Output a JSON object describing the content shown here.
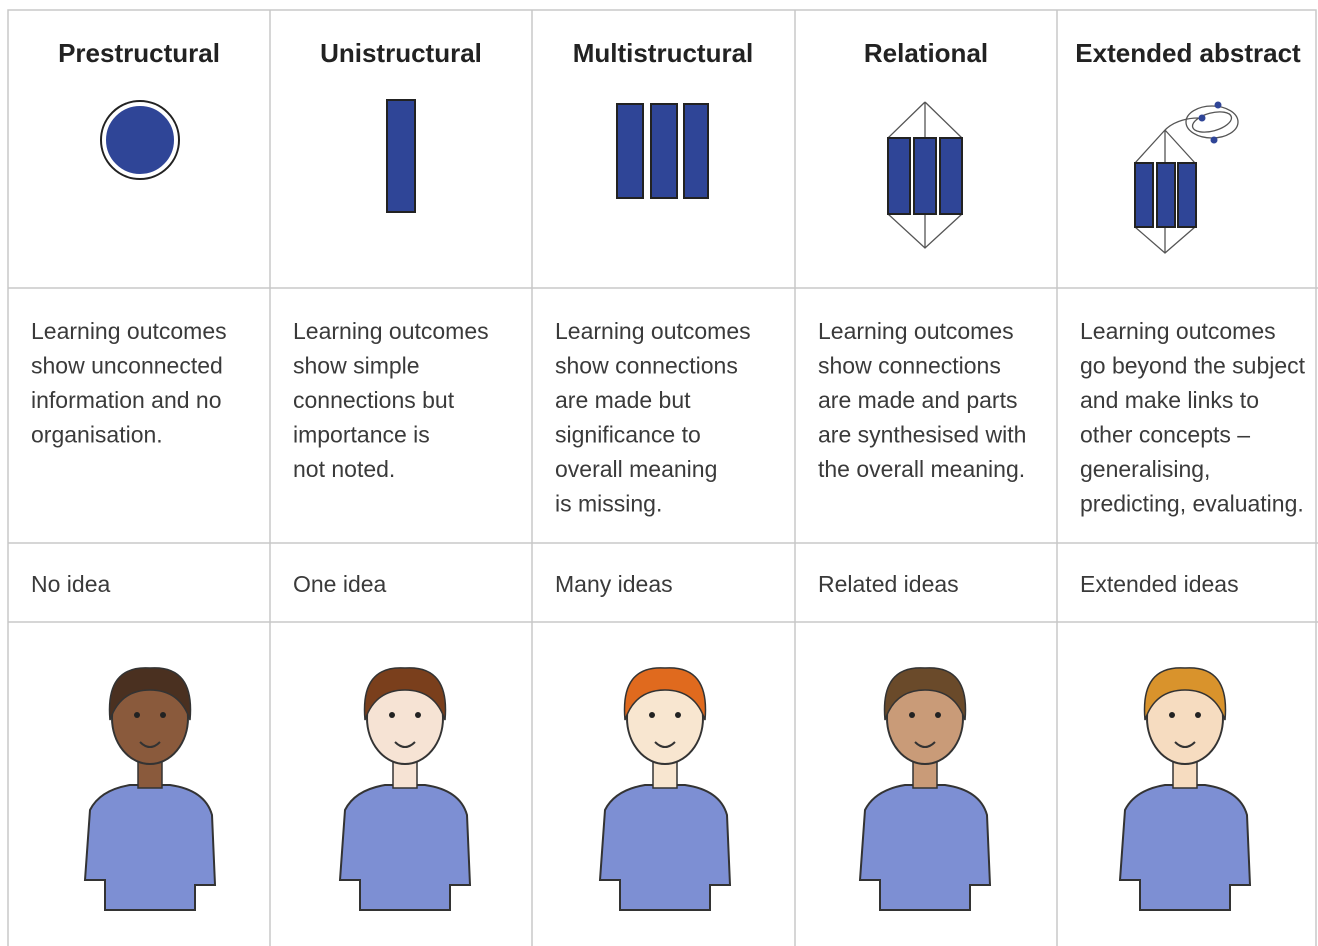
{
  "table": {
    "columns": [
      {
        "title": "Prestructural",
        "description_lines": [
          "Learning outcomes",
          "show unconnected",
          "information and no",
          "organisation."
        ],
        "idea": "No idea"
      },
      {
        "title": "Unistructural",
        "description_lines": [
          "Learning outcomes",
          "show simple",
          "connections but",
          "importance is",
          "not noted."
        ],
        "idea": "One idea"
      },
      {
        "title": "Multistructural",
        "description_lines": [
          "Learning outcomes",
          "show connections",
          "are made but",
          "significance to",
          "overall meaning",
          "is missing."
        ],
        "idea": "Many ideas"
      },
      {
        "title": "Relational",
        "description_lines": [
          "Learning outcomes",
          "show connections",
          "are made and parts",
          "are synthesised with",
          "the overall meaning."
        ],
        "idea": "Related ideas"
      },
      {
        "title": "Extended abstract",
        "description_lines": [
          "Learning outcomes",
          "go beyond the subject",
          "and make links to",
          "other concepts –",
          "generalising,",
          "predicting, evaluating."
        ],
        "idea": "Extended ideas"
      }
    ]
  }
}
